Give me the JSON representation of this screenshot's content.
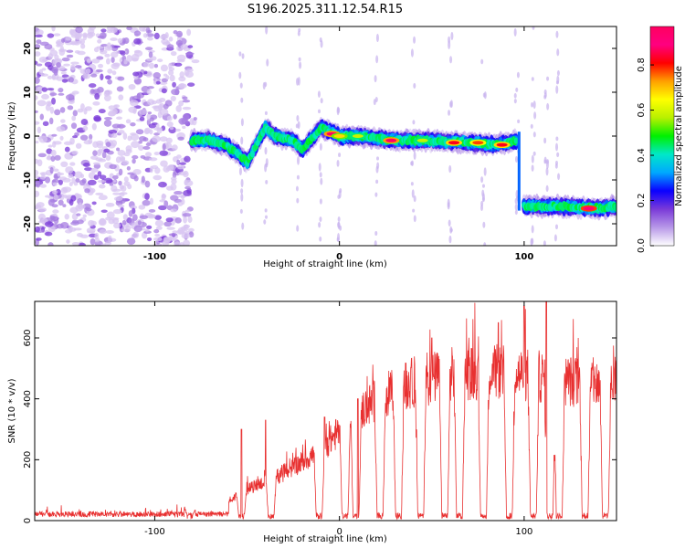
{
  "title": "S196.2025.311.12.54.R15",
  "colorbar": {
    "label": "Normalized spectral amplitude",
    "ticks": [
      0.0,
      0.2,
      0.4,
      0.6,
      0.8
    ],
    "tick_labels": [
      "0.0",
      "0.2",
      "0.4",
      "0.6",
      "0.8"
    ],
    "range": [
      0,
      0.97
    ],
    "stops": [
      "#ffffff",
      "#b898e8",
      "#7a3ad8",
      "#0a00ff",
      "#00a8ff",
      "#00e8c8",
      "#00f000",
      "#b8f000",
      "#ffff00",
      "#ffa000",
      "#ff0000",
      "#ff0080",
      "#ff0060"
    ]
  },
  "chart_data": [
    {
      "type": "heatmap",
      "title": "S196.2025.311.12.54.R15",
      "xlabel": "Height of straight line (km)",
      "ylabel": "Frequency (Hz)",
      "xlim": [
        -165,
        150
      ],
      "ylim": [
        -25,
        25
      ],
      "xticks": [
        -100,
        0,
        100
      ],
      "xtick_labels": [
        "-100",
        "0",
        "100"
      ],
      "yticks": [
        -20,
        -10,
        0,
        10,
        20
      ],
      "ytick_labels": [
        "-20",
        "-10",
        "0",
        "10",
        "20"
      ],
      "noise_region_x": [
        -165,
        -80
      ],
      "ridge": [
        {
          "x": -80,
          "f": -1
        },
        {
          "x": -70,
          "f": -1
        },
        {
          "x": -62,
          "f": -2
        },
        {
          "x": -55,
          "f": -4
        },
        {
          "x": -50,
          "f": -6
        },
        {
          "x": -45,
          "f": -2
        },
        {
          "x": -40,
          "f": 2
        },
        {
          "x": -35,
          "f": 0
        },
        {
          "x": -25,
          "f": -1
        },
        {
          "x": -20,
          "f": -3
        },
        {
          "x": -10,
          "f": 2
        },
        {
          "x": -5,
          "f": 1
        },
        {
          "x": 0,
          "f": 0
        },
        {
          "x": 10,
          "f": 0
        },
        {
          "x": 30,
          "f": -1
        },
        {
          "x": 50,
          "f": -1
        },
        {
          "x": 70,
          "f": -1.5
        },
        {
          "x": 85,
          "f": -2
        },
        {
          "x": 96,
          "f": -1
        },
        {
          "x": 100,
          "f": -16
        },
        {
          "x": 120,
          "f": -16
        },
        {
          "x": 140,
          "f": -16.5
        },
        {
          "x": 150,
          "f": -16
        }
      ],
      "hotspots": [
        {
          "x": -4,
          "f": 0.5,
          "v": 0.9
        },
        {
          "x": 28,
          "f": -1,
          "v": 0.9
        },
        {
          "x": 62,
          "f": -1.5,
          "v": 0.85
        },
        {
          "x": 75,
          "f": -1.5,
          "v": 0.8
        },
        {
          "x": 88,
          "f": -2,
          "v": 0.85
        },
        {
          "x": 135,
          "f": -16.5,
          "v": 0.95
        },
        {
          "x": 0,
          "f": 0,
          "v": 0.7
        },
        {
          "x": 10,
          "f": 0,
          "v": 0.6
        },
        {
          "x": 45,
          "f": -1,
          "v": 0.6
        }
      ]
    },
    {
      "type": "line",
      "xlabel": "Height of straight line (km)",
      "ylabel": "SNR (10 * v/v)",
      "xlim": [
        -165,
        150
      ],
      "ylim": [
        0,
        720
      ],
      "xticks": [
        -100,
        0,
        100
      ],
      "xtick_labels": [
        "-100",
        "0",
        "100"
      ],
      "yticks": [
        0,
        200,
        400,
        600
      ],
      "ytick_labels": [
        "0",
        "200",
        "400",
        "600"
      ],
      "color": "#e83030",
      "series": [
        {
          "name": "SNR",
          "envelope": [
            [
              -165,
              25
            ],
            [
              -100,
              25
            ],
            [
              -80,
              30
            ],
            [
              -70,
              40
            ],
            [
              -60,
              70
            ],
            [
              -50,
              110
            ],
            [
              -40,
              140
            ],
            [
              -30,
              170
            ],
            [
              -20,
              210
            ],
            [
              -10,
              250
            ],
            [
              0,
              320
            ],
            [
              10,
              380
            ],
            [
              20,
              430
            ],
            [
              40,
              490
            ],
            [
              60,
              520
            ],
            [
              80,
              530
            ],
            [
              100,
              520
            ],
            [
              120,
              500
            ],
            [
              150,
              480
            ]
          ],
          "dropouts": [
            -81,
            -53,
            -37,
            -11,
            3,
            9,
            22,
            32,
            44,
            57,
            65,
            78,
            92,
            105,
            114,
            119,
            133,
            144
          ],
          "spikes": [
            [
              -53,
              300
            ],
            [
              -40,
              330
            ],
            [
              -8,
              340
            ],
            [
              10,
              400
            ],
            [
              50,
              600
            ],
            [
              86,
              650
            ],
            [
              100,
              705
            ],
            [
              112,
              720
            ]
          ]
        }
      ]
    }
  ]
}
